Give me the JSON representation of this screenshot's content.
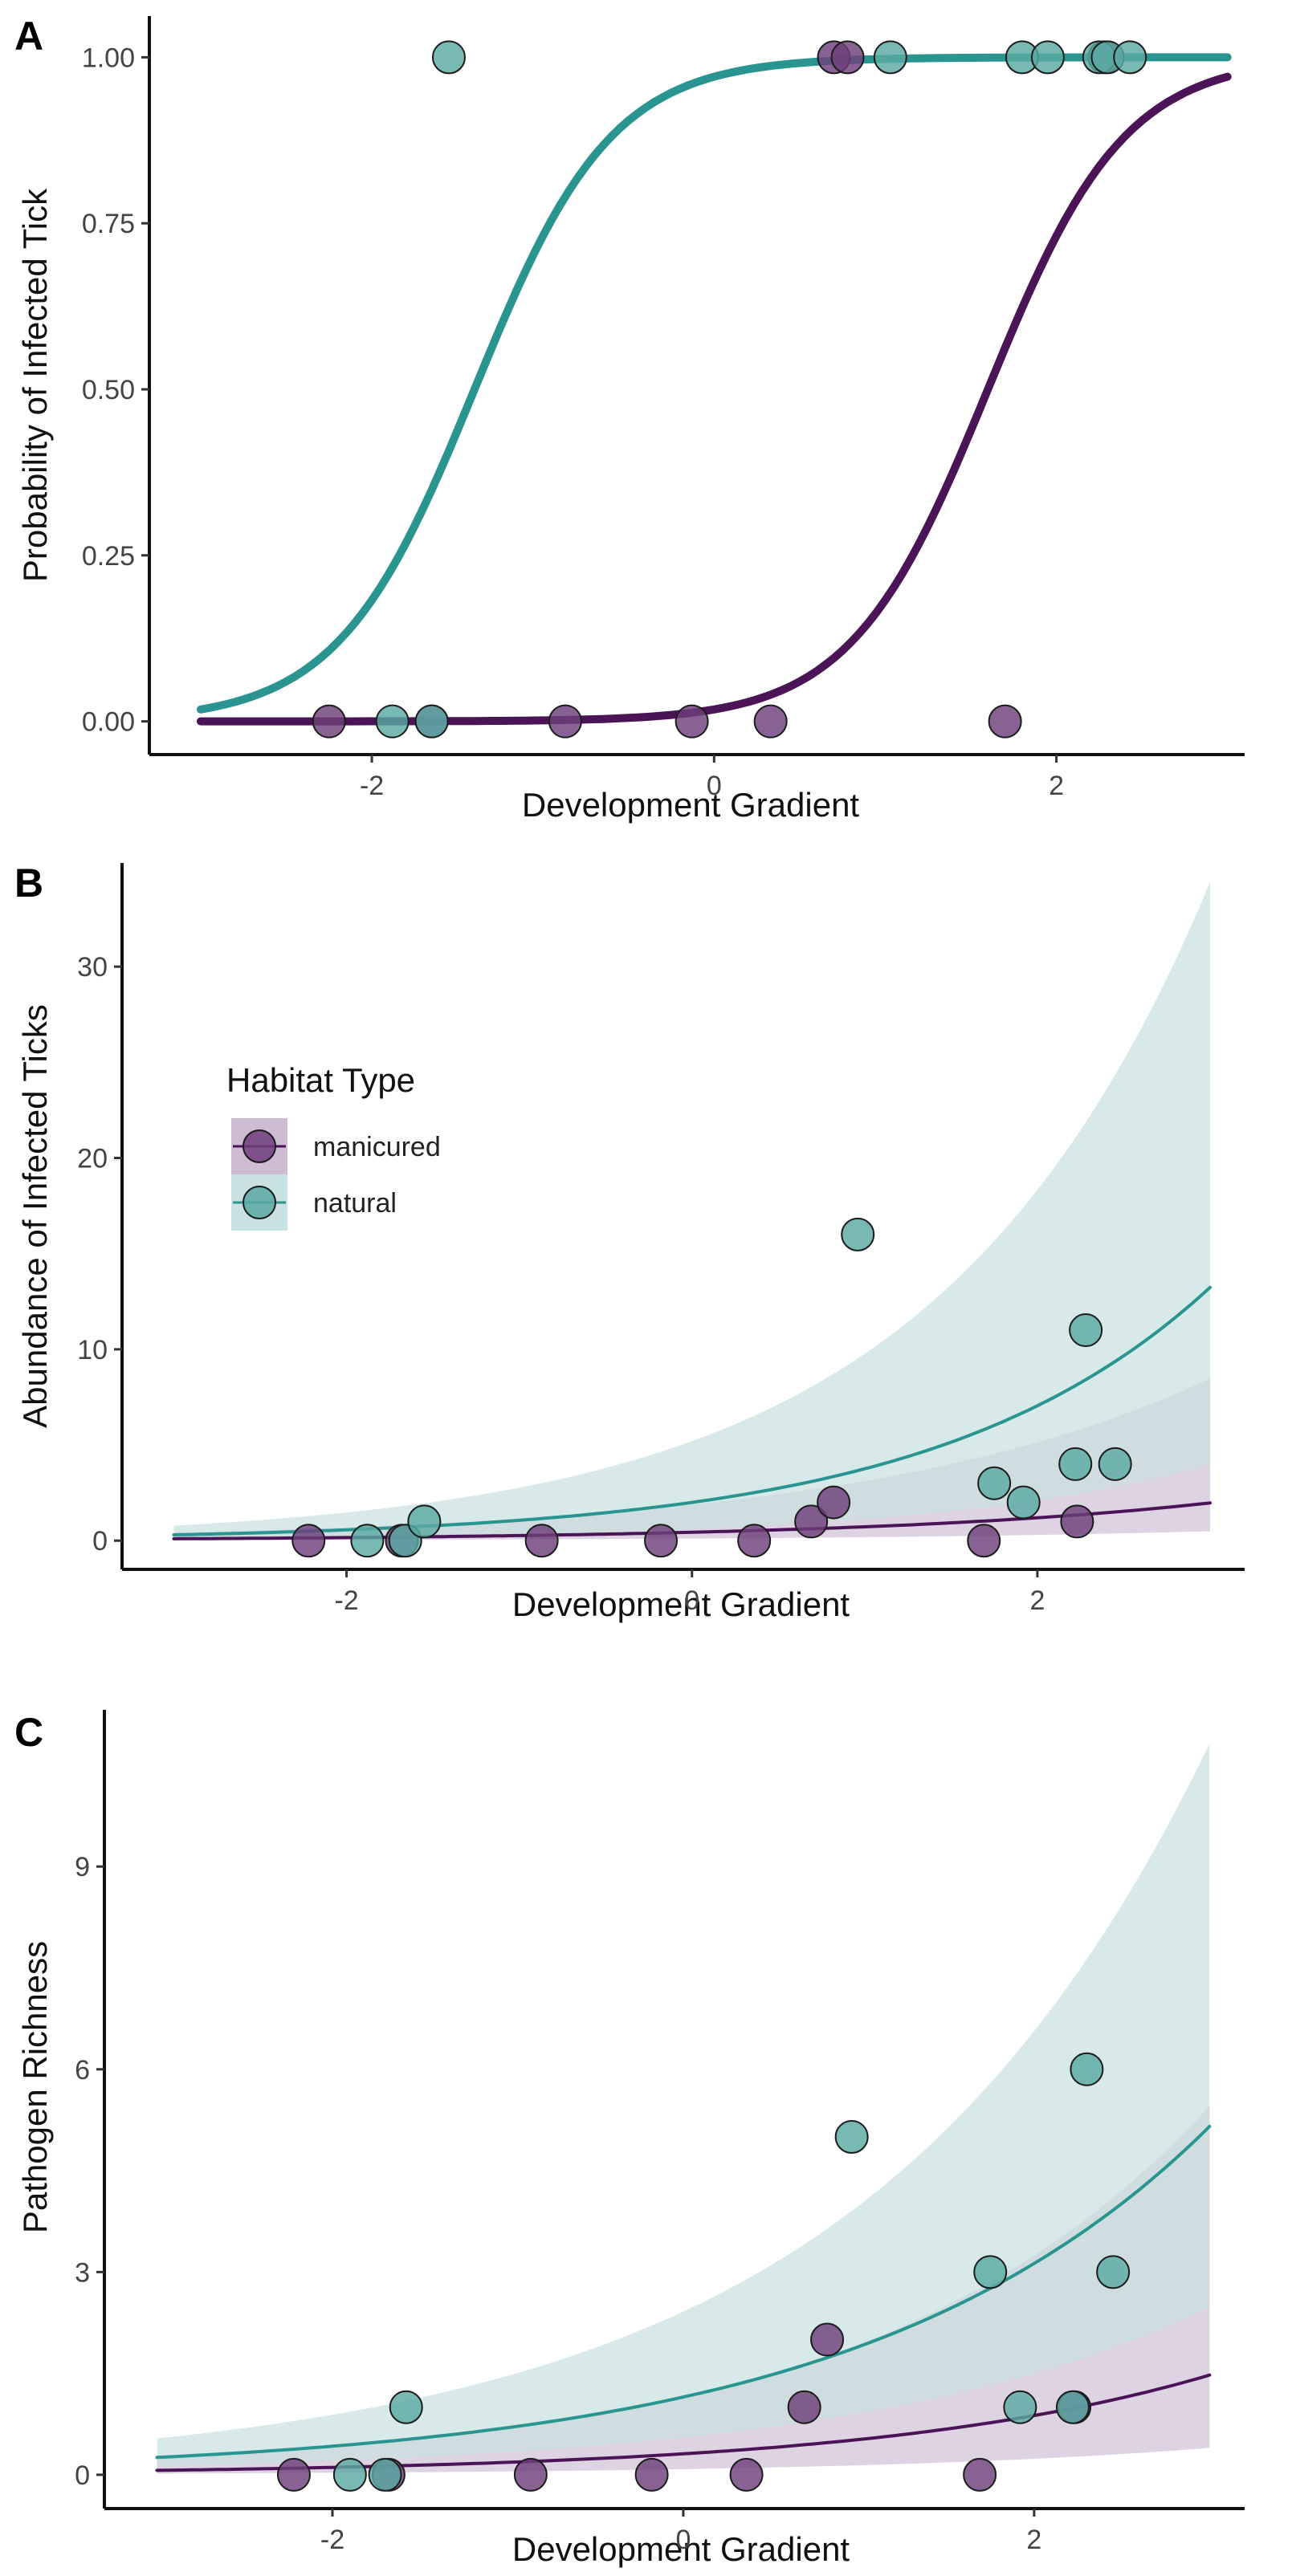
{
  "colors": {
    "manicured": "#4a1456",
    "natural": "#2a9590",
    "manicured_point": "#6e3f7a",
    "natural_point": "#5aa9a4",
    "manicured_band": "#cdbcd4",
    "natural_band": "#c9e1e1"
  },
  "legend": {
    "title": "Habitat Type",
    "items": [
      {
        "key": "manicured",
        "label": "manicured"
      },
      {
        "key": "natural",
        "label": "natural"
      }
    ]
  },
  "chart_data": [
    {
      "panel": "A",
      "type": "scatter",
      "title": "",
      "xlabel": "Development Gradient",
      "ylabel": "Probability of Infected Tick",
      "xlim": [
        -3.3,
        3.1
      ],
      "ylim": [
        -0.05,
        1.05
      ],
      "x_ticks": [
        -2,
        0,
        2
      ],
      "x_tick_labels": [
        "-2",
        "0",
        "2"
      ],
      "y_ticks": [
        0,
        0.25,
        0.5,
        0.75,
        1.0
      ],
      "y_tick_labels": [
        "0.00",
        "0.25",
        "0.50",
        "0.75",
        "1.00"
      ],
      "fit": "logistic",
      "series": [
        {
          "name": "manicured",
          "key": "manicured",
          "curve": {
            "intercept": -4.0,
            "slope": 2.5,
            "x_range": [
              -3,
              3
            ]
          },
          "points": [
            {
              "x": -2.25,
              "y": 0
            },
            {
              "x": -1.65,
              "y": 0
            },
            {
              "x": -0.87,
              "y": 0
            },
            {
              "x": -0.13,
              "y": 0
            },
            {
              "x": 0.33,
              "y": 0
            },
            {
              "x": 1.7,
              "y": 0
            },
            {
              "x": 0.7,
              "y": 1
            },
            {
              "x": 0.78,
              "y": 1
            },
            {
              "x": 2.28,
              "y": 1
            }
          ]
        },
        {
          "name": "natural",
          "key": "natural",
          "curve": {
            "intercept": 3.5,
            "slope": 2.5,
            "x_range": [
              -3,
              3
            ]
          },
          "points": [
            {
              "x": -1.88,
              "y": 0
            },
            {
              "x": -1.65,
              "y": 0
            },
            {
              "x": -1.55,
              "y": 1
            },
            {
              "x": 1.03,
              "y": 1
            },
            {
              "x": 1.8,
              "y": 1
            },
            {
              "x": 1.95,
              "y": 1
            },
            {
              "x": 2.25,
              "y": 1
            },
            {
              "x": 2.3,
              "y": 1
            },
            {
              "x": 2.43,
              "y": 1
            }
          ]
        }
      ]
    },
    {
      "panel": "B",
      "type": "scatter",
      "title": "",
      "xlabel": "Development Gradient",
      "ylabel": "Abundance of Infected Ticks",
      "xlim": [
        -3.3,
        3.2
      ],
      "ylim": [
        -1.5,
        35
      ],
      "x_ticks": [
        -2,
        0,
        2
      ],
      "x_tick_labels": [
        "-2",
        "0",
        "2"
      ],
      "y_ticks": [
        0,
        10,
        20,
        30
      ],
      "y_tick_labels": [
        "0",
        "10",
        "20",
        "30"
      ],
      "fit": "exponential",
      "series": [
        {
          "name": "manicured",
          "key": "manicured",
          "curve": {
            "a": 0.44,
            "b": 0.5,
            "lower_factor": 0.25,
            "upper_factor": 4.3,
            "x_range": [
              -3,
              3
            ]
          },
          "points": [
            {
              "x": -2.22,
              "y": 0
            },
            {
              "x": -1.68,
              "y": 0
            },
            {
              "x": -0.87,
              "y": 0
            },
            {
              "x": -0.18,
              "y": 0
            },
            {
              "x": 0.36,
              "y": 0
            },
            {
              "x": 0.69,
              "y": 1
            },
            {
              "x": 0.82,
              "y": 2
            },
            {
              "x": 1.69,
              "y": 0
            },
            {
              "x": 2.23,
              "y": 1
            }
          ]
        },
        {
          "name": "natural",
          "key": "natural",
          "curve": {
            "a": 2.0,
            "b": 0.63,
            "lower_factor": 0.3,
            "upper_factor": 2.6,
            "x_range": [
              -3,
              3
            ]
          },
          "points": [
            {
              "x": -1.88,
              "y": 0
            },
            {
              "x": -1.66,
              "y": 0
            },
            {
              "x": -1.55,
              "y": 1
            },
            {
              "x": 0.96,
              "y": 16
            },
            {
              "x": 1.75,
              "y": 3
            },
            {
              "x": 1.92,
              "y": 2
            },
            {
              "x": 2.22,
              "y": 4
            },
            {
              "x": 2.28,
              "y": 11
            },
            {
              "x": 2.45,
              "y": 4
            }
          ]
        }
      ]
    },
    {
      "panel": "C",
      "type": "scatter",
      "title": "",
      "xlabel": "Development Gradient",
      "ylabel": "Pathogen Richness",
      "xlim": [
        -3.3,
        3.2
      ],
      "ylim": [
        -0.5,
        11.2
      ],
      "x_ticks": [
        -2,
        0,
        2
      ],
      "x_tick_labels": [
        "-2",
        "0",
        "2"
      ],
      "y_ticks": [
        0,
        3,
        6,
        9
      ],
      "y_tick_labels": [
        "0",
        "3",
        "6",
        "9"
      ],
      "fit": "exponential",
      "series": [
        {
          "name": "manicured",
          "key": "manicured",
          "curve": {
            "a": 0.31,
            "b": 0.52,
            "lower_factor": 0.27,
            "upper_factor": 3.7,
            "x_range": [
              -3,
              3
            ]
          },
          "points": [
            {
              "x": -2.22,
              "y": 0
            },
            {
              "x": -1.68,
              "y": 0
            },
            {
              "x": -0.87,
              "y": 0
            },
            {
              "x": -0.18,
              "y": 0
            },
            {
              "x": 0.36,
              "y": 0
            },
            {
              "x": 0.69,
              "y": 1
            },
            {
              "x": 0.82,
              "y": 2
            },
            {
              "x": 1.69,
              "y": 0
            },
            {
              "x": 2.23,
              "y": 1
            }
          ]
        },
        {
          "name": "natural",
          "key": "natural",
          "curve": {
            "a": 1.15,
            "b": 0.5,
            "lower_factor": 0.48,
            "upper_factor": 2.1,
            "x_range": [
              -3,
              3
            ]
          },
          "points": [
            {
              "x": -1.9,
              "y": 0
            },
            {
              "x": -1.7,
              "y": 0
            },
            {
              "x": -1.58,
              "y": 1
            },
            {
              "x": 0.96,
              "y": 5
            },
            {
              "x": 1.75,
              "y": 3
            },
            {
              "x": 1.92,
              "y": 1
            },
            {
              "x": 2.22,
              "y": 1
            },
            {
              "x": 2.3,
              "y": 6
            },
            {
              "x": 2.45,
              "y": 3
            }
          ]
        }
      ]
    }
  ]
}
